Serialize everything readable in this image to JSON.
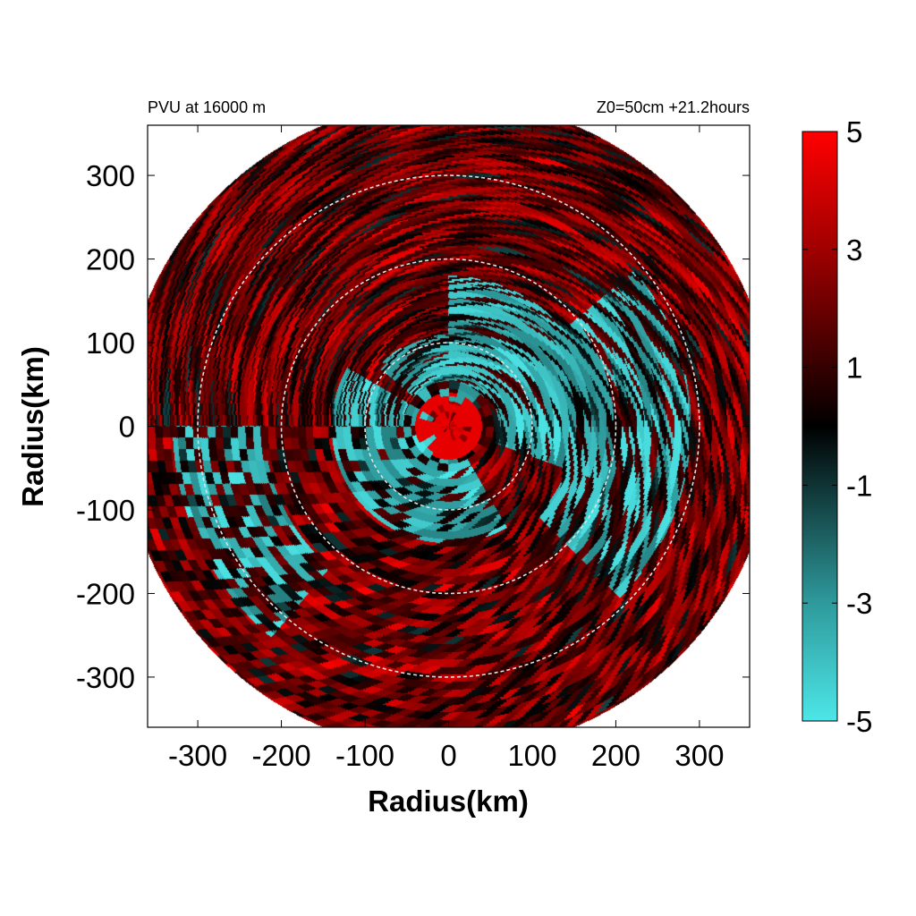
{
  "chart_data": {
    "type": "heatmap",
    "projection": "polar-to-cartesian",
    "title_left": "PVU at 16000 m",
    "title_right": "Z0=50cm  +21.2hours",
    "xlabel": "Radius(km)",
    "ylabel": "Radius(km)",
    "xlim": [
      -360,
      360
    ],
    "ylim": [
      -360,
      360
    ],
    "xticks": [
      -300,
      -200,
      -100,
      0,
      100,
      200,
      300
    ],
    "yticks": [
      300,
      200,
      100,
      0,
      -100,
      -200,
      -300
    ],
    "xtick_labels": [
      "-300",
      "-200",
      "-100",
      "0",
      "100",
      "200",
      "300"
    ],
    "ytick_labels": [
      "300",
      "200",
      "100",
      "0",
      "-100",
      "-200",
      "-300"
    ],
    "reference_circles_km": [
      100,
      200,
      300
    ],
    "data_radius_km": 390,
    "colorbar": {
      "range": [
        -5,
        5
      ],
      "tick_values": [
        5,
        3,
        1,
        -1,
        -3,
        -5
      ],
      "tick_labels": [
        "5",
        "3",
        "1",
        "-1",
        "-3",
        "-5"
      ],
      "stops": [
        {
          "value": -5,
          "color": "#4de6e8"
        },
        {
          "value": -3,
          "color": "#2e9a9c"
        },
        {
          "value": 0,
          "color": "#000000"
        },
        {
          "value": 3,
          "color": "#a00000"
        },
        {
          "value": 5,
          "color": "#ff0000"
        }
      ]
    },
    "negative_regions": [
      {
        "r": [
          60,
          180
        ],
        "theta_deg": [
          -20,
          90
        ],
        "strength": 0.85
      },
      {
        "r": [
          20,
          140
        ],
        "theta_deg": [
          150,
          300
        ],
        "strength": 0.75
      },
      {
        "r": [
          150,
          290
        ],
        "theta_deg": [
          -45,
          40
        ],
        "strength": 0.65
      },
      {
        "r": [
          220,
          330
        ],
        "theta_deg": [
          180,
          230
        ],
        "strength": 0.55
      },
      {
        "r": [
          30,
          110
        ],
        "theta_deg": [
          40,
          140
        ],
        "strength": 0.6
      }
    ],
    "grid": false,
    "legend": "colorbar-right"
  }
}
